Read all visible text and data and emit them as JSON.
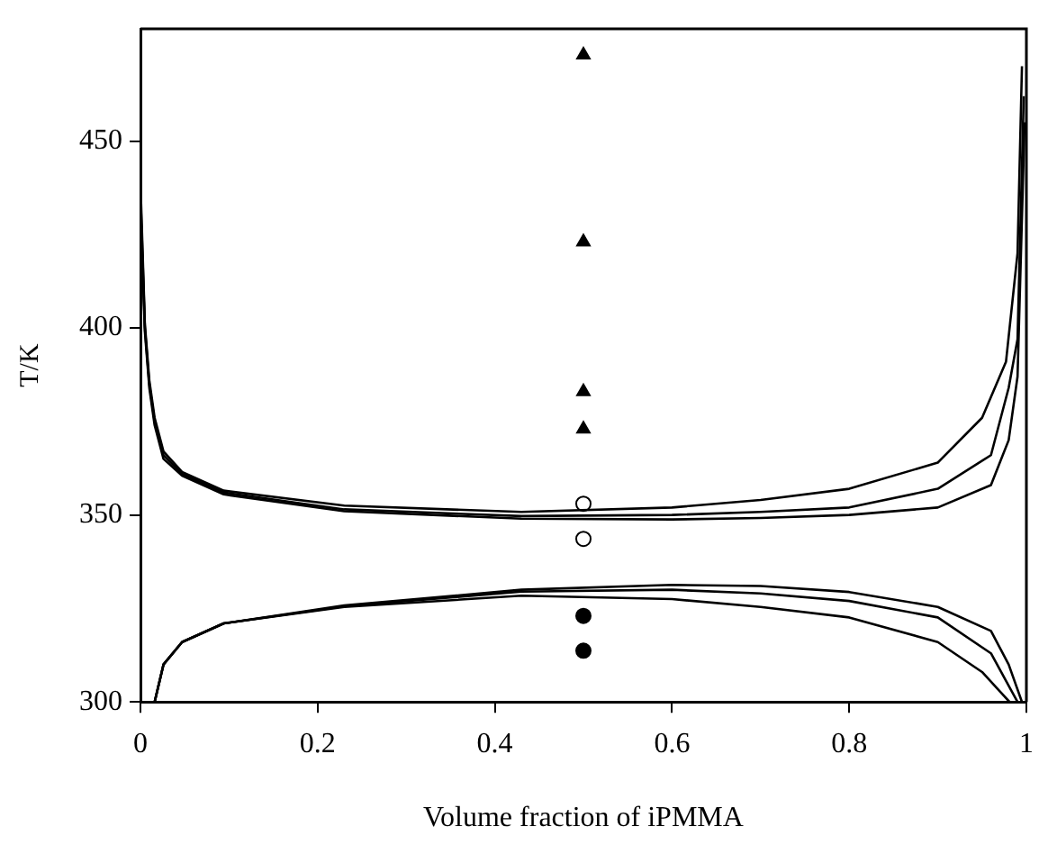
{
  "chart_data": {
    "type": "line",
    "xlabel": "Volume fraction of iPMMA",
    "ylabel": "T/K",
    "xlim": [
      0,
      1
    ],
    "ylim": [
      300,
      480
    ],
    "xticks": [
      0,
      0.2,
      0.4,
      0.6,
      0.8,
      1
    ],
    "yticks": [
      300,
      350,
      400,
      450
    ],
    "grid": false,
    "legend": false,
    "marker": "none",
    "line_style": "solid",
    "series": [
      {
        "color": "#000000",
        "x": [
          0,
          0.005,
          0.01,
          0.016,
          0.026,
          0.047,
          0.094,
          0.23,
          0.43,
          0.6,
          0.7,
          0.8,
          0.9,
          0.95,
          0.977,
          0.99,
          0.995
        ],
        "values": [
          439,
          401,
          386,
          376,
          367,
          361.5,
          356.5,
          352.5,
          350.8,
          352,
          354,
          357,
          364,
          376,
          391,
          420,
          470
        ]
      },
      {
        "color": "#000000",
        "x": [
          0,
          0.005,
          0.01,
          0.016,
          0.026,
          0.047,
          0.094,
          0.23,
          0.43,
          0.6,
          0.7,
          0.8,
          0.9,
          0.96,
          0.98,
          0.99,
          0.997
        ],
        "values": [
          436,
          400,
          385,
          375,
          366,
          361,
          356,
          351.5,
          349.7,
          350,
          350.8,
          352,
          357,
          366,
          384,
          397,
          462
        ]
      },
      {
        "color": "#000000",
        "x": [
          0,
          0.005,
          0.01,
          0.016,
          0.026,
          0.047,
          0.094,
          0.23,
          0.43,
          0.6,
          0.7,
          0.8,
          0.9,
          0.96,
          0.98,
          0.99,
          0.998
        ],
        "values": [
          433,
          399,
          384,
          374,
          365,
          360.5,
          355.5,
          351,
          349,
          348.8,
          349.2,
          350,
          352,
          358,
          370,
          387,
          455
        ]
      },
      {
        "color": "#000000",
        "x": [
          0.016,
          0.026,
          0.047,
          0.094,
          0.23,
          0.43,
          0.6,
          0.7,
          0.8,
          0.9,
          0.96,
          0.98,
          0.995
        ],
        "values": [
          300,
          310,
          316,
          321,
          325.8,
          330,
          331.3,
          331,
          329.4,
          325.4,
          319,
          310,
          300
        ]
      },
      {
        "color": "#000000",
        "x": [
          0.016,
          0.026,
          0.047,
          0.094,
          0.23,
          0.43,
          0.6,
          0.7,
          0.8,
          0.9,
          0.96,
          0.99
        ],
        "values": [
          300,
          310,
          316,
          321,
          325.6,
          329.5,
          330,
          329,
          327,
          322.6,
          313,
          300
        ]
      },
      {
        "color": "#000000",
        "x": [
          0.016,
          0.026,
          0.047,
          0.094,
          0.23,
          0.43,
          0.6,
          0.7,
          0.8,
          0.9,
          0.95,
          0.981
        ],
        "values": [
          300,
          310,
          316,
          321,
          325.4,
          328.4,
          327.5,
          325.4,
          322.6,
          316,
          308,
          300
        ]
      },
      {
        "type": "scatter",
        "marker": "triangle",
        "color": "#000000",
        "x": [
          0.5,
          0.5,
          0.5,
          0.5
        ],
        "values": [
          473,
          423,
          383,
          373
        ]
      },
      {
        "type": "scatter",
        "marker": "circle",
        "color": "#ffffff",
        "x": [
          0.5,
          0.5
        ],
        "values": [
          353,
          343.6
        ]
      },
      {
        "type": "scatter",
        "marker": "circle",
        "color": "#000000",
        "x": [
          0.5,
          0.5
        ],
        "values": [
          323,
          313.7
        ]
      }
    ]
  }
}
